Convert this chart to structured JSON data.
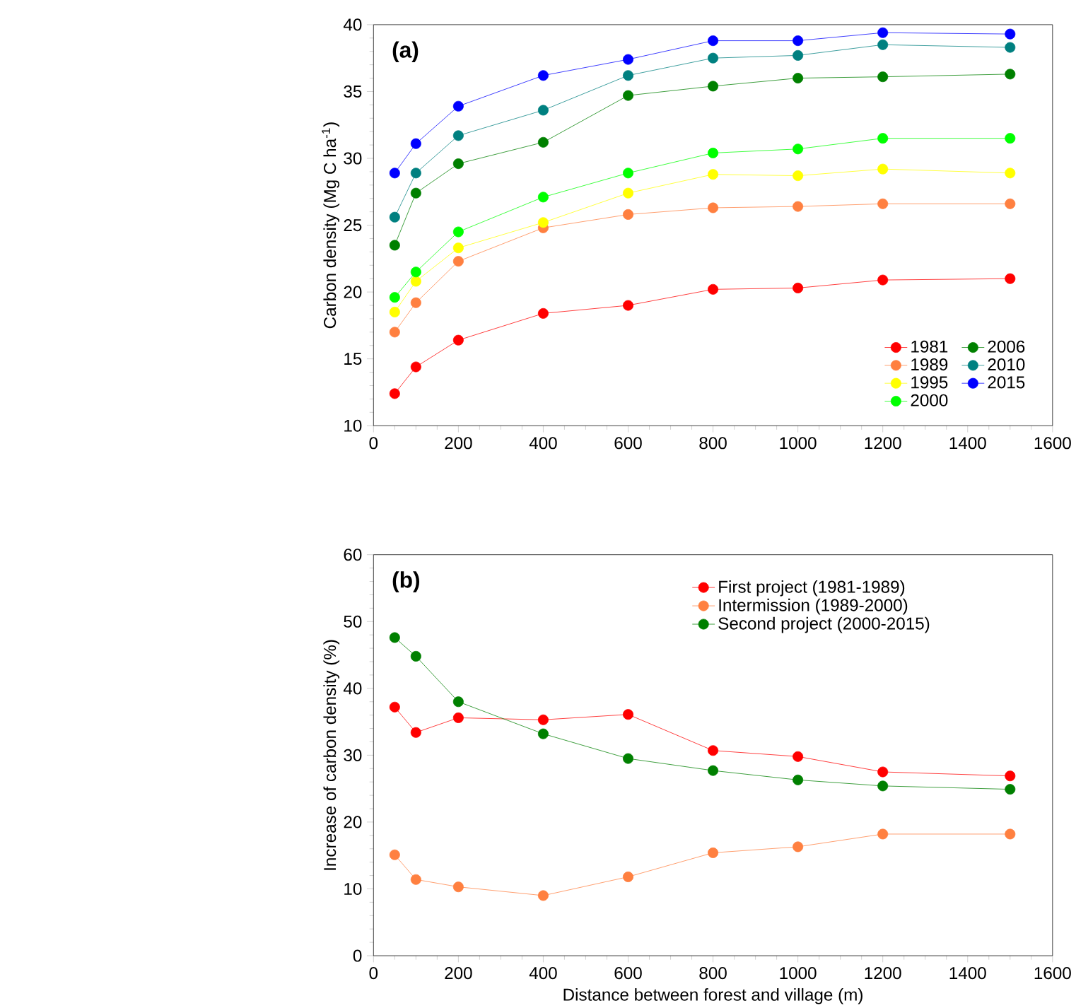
{
  "chart_data": [
    {
      "type": "line",
      "ylabel": "Carbon density (Mg C ha$^{-1}$)",
      "annotations": [
        "(a)"
      ],
      "x": [
        50,
        100,
        200,
        400,
        600,
        800,
        1000,
        1200,
        1500
      ],
      "xlim": [
        0,
        1600
      ],
      "xticks": [
        0,
        200,
        400,
        600,
        800,
        1000,
        1200,
        1400,
        1600
      ],
      "ylim": [
        10,
        40
      ],
      "yticks": [
        10,
        15,
        20,
        25,
        30,
        35,
        40
      ],
      "marker": "circle",
      "legend": "bottom right",
      "series": [
        {
          "name": "1981",
          "color": "#ff0000",
          "values": [
            12.4,
            14.4,
            16.4,
            18.4,
            19.0,
            20.2,
            20.3,
            20.9,
            21.0
          ]
        },
        {
          "name": "1989",
          "color": "#ff8040",
          "values": [
            17.0,
            19.2,
            22.3,
            24.8,
            25.8,
            26.3,
            26.4,
            26.6,
            26.6
          ]
        },
        {
          "name": "1995",
          "color": "#ffff00",
          "values": [
            18.5,
            20.8,
            23.3,
            25.2,
            27.4,
            28.8,
            28.7,
            29.2,
            28.9
          ]
        },
        {
          "name": "2000",
          "color": "#00ff00",
          "values": [
            19.6,
            21.5,
            24.5,
            27.1,
            28.9,
            30.4,
            30.7,
            31.5,
            31.5
          ]
        },
        {
          "name": "2006",
          "color": "#008000",
          "values": [
            23.5,
            27.4,
            29.6,
            31.2,
            34.7,
            35.4,
            36.0,
            36.1,
            36.3
          ]
        },
        {
          "name": "2010",
          "color": "#008080",
          "values": [
            25.6,
            28.9,
            31.7,
            33.6,
            36.2,
            37.5,
            37.7,
            38.5,
            38.3
          ]
        },
        {
          "name": "2015",
          "color": "#0000ff",
          "values": [
            28.9,
            31.1,
            33.9,
            36.2,
            37.4,
            38.8,
            38.8,
            39.4,
            39.3
          ]
        }
      ]
    },
    {
      "type": "line",
      "xlabel": "Distance between forest and village (m)",
      "ylabel": "Increase of carbon density (%)",
      "annotations": [
        "(b)"
      ],
      "x": [
        50,
        100,
        200,
        400,
        600,
        800,
        1000,
        1200,
        1500
      ],
      "xlim": [
        0,
        1600
      ],
      "xticks": [
        0,
        200,
        400,
        600,
        800,
        1000,
        1200,
        1400,
        1600
      ],
      "ylim": [
        0,
        60
      ],
      "yticks": [
        0,
        10,
        20,
        30,
        40,
        50,
        60
      ],
      "marker": "circle",
      "legend": "top right",
      "series": [
        {
          "name": "First project (1981-1989)",
          "color": "#ff0000",
          "values": [
            37.2,
            33.4,
            35.6,
            35.3,
            36.1,
            30.7,
            29.8,
            27.5,
            26.9
          ]
        },
        {
          "name": "Intermission (1989-2000)",
          "color": "#ff8040",
          "values": [
            15.1,
            11.4,
            10.3,
            9.0,
            11.8,
            15.4,
            16.3,
            18.2,
            18.2
          ]
        },
        {
          "name": "Second project (2000-2015)",
          "color": "#008000",
          "values": [
            47.6,
            44.8,
            38.0,
            33.2,
            29.5,
            27.7,
            26.3,
            25.4,
            24.9
          ]
        }
      ]
    }
  ]
}
